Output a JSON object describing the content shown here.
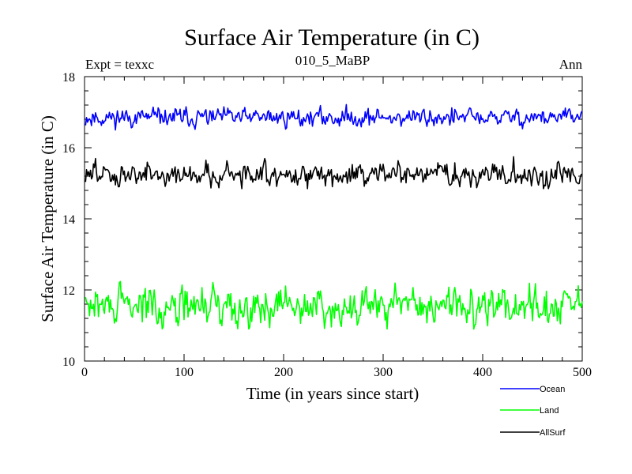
{
  "chart_data": {
    "type": "line",
    "title": "Surface Air Temperature (in C)",
    "subtitle_left": "Expt = texxc",
    "subtitle_center": "010_5_MaBP",
    "subtitle_right": "Ann",
    "xlabel": "Time (in years since start)",
    "ylabel": "Surface Air Temperature (in C)",
    "xlim": [
      0,
      500
    ],
    "ylim": [
      10,
      18
    ],
    "xticks": [
      0,
      100,
      200,
      300,
      400,
      500
    ],
    "yticks": [
      10,
      12,
      14,
      16,
      18
    ],
    "grid": false,
    "legend_position": "bottom-right",
    "x": {
      "start": 1,
      "end": 500,
      "step": 1
    },
    "series": [
      {
        "name": "Ocean",
        "color": "#0000ff",
        "mean": 16.85,
        "amplitude": 0.22,
        "seed": 11,
        "min_observed": 16.5,
        "max_observed": 17.25
      },
      {
        "name": "Land",
        "color": "#00ff00",
        "mean": 11.55,
        "amplitude": 0.45,
        "seed": 29,
        "min_observed": 10.9,
        "max_observed": 12.3
      },
      {
        "name": "AllSurf",
        "color": "#000000",
        "mean": 15.25,
        "amplitude": 0.28,
        "seed": 47,
        "min_observed": 14.85,
        "max_observed": 15.75
      }
    ]
  }
}
